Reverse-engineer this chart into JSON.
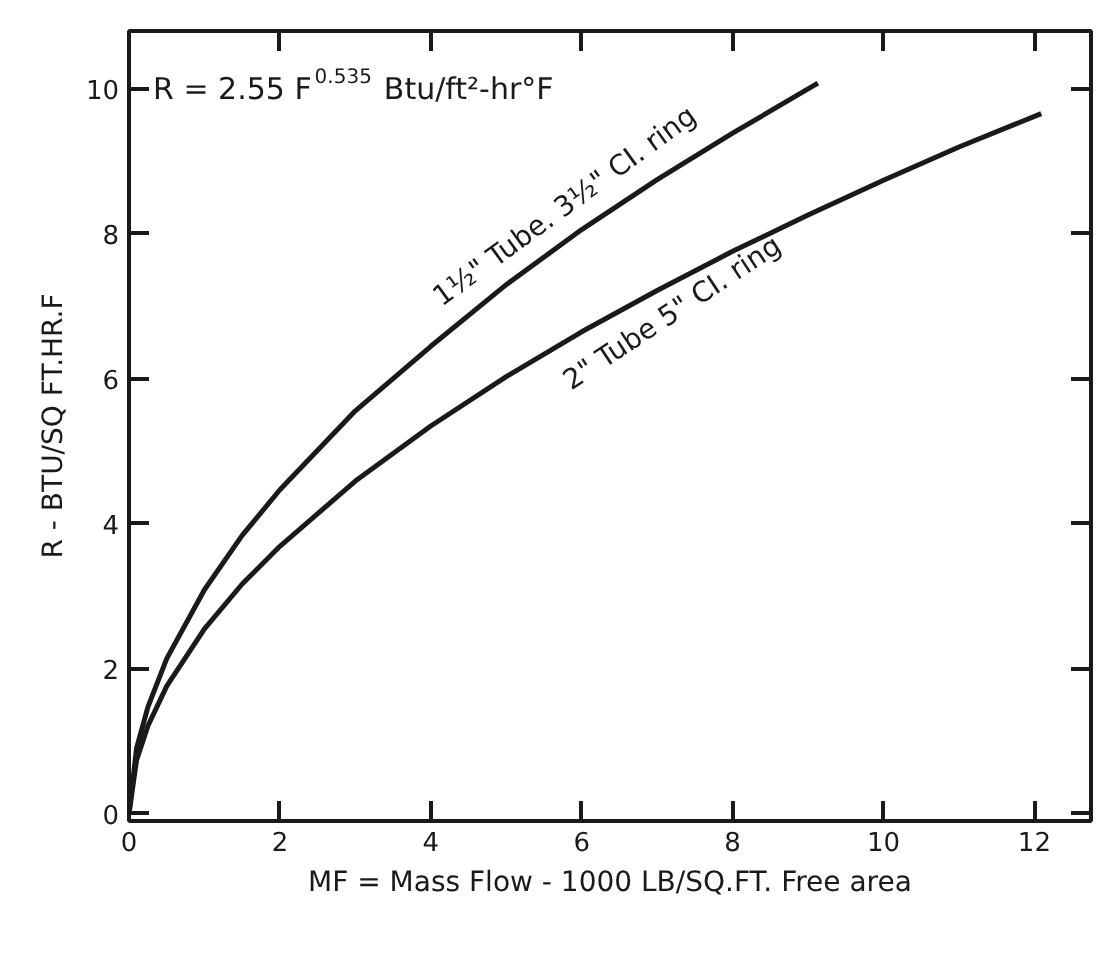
{
  "chart_data": {
    "type": "line",
    "xlabel": "MF = Mass Flow - 1000 LB/SQ.FT. Free area",
    "ylabel": "R - BTU/SQ FT.HR.F",
    "xlim": [
      0,
      12.75
    ],
    "ylim": [
      -0.1,
      10.8
    ],
    "xticks": [
      0,
      2,
      4,
      6,
      8,
      10,
      12
    ],
    "yticks": [
      0,
      2,
      4,
      6,
      8,
      10
    ],
    "grid": false,
    "marker": "none",
    "line_style": "solid",
    "series": [
      {
        "color": "#1a1a1a",
        "x": [
          0,
          0.1,
          0.25,
          0.5,
          1,
          1.5,
          2,
          3,
          4,
          5,
          6,
          7,
          8,
          9.13
        ],
        "values": [
          0,
          0.9,
          1.47,
          2.14,
          3.09,
          3.84,
          4.47,
          5.56,
          6.45,
          7.3,
          8.06,
          8.75,
          9.39,
          10.08
        ]
      },
      {
        "color": "#1a1a1a",
        "x": [
          0,
          0.1,
          0.25,
          0.5,
          1,
          1.5,
          2,
          3,
          4,
          5,
          6,
          7,
          8,
          9,
          10,
          11,
          12.09
        ],
        "values": [
          0,
          0.74,
          1.21,
          1.76,
          2.55,
          3.17,
          3.69,
          4.59,
          5.35,
          6.03,
          6.65,
          7.22,
          7.76,
          8.26,
          8.74,
          9.2,
          9.66
        ]
      }
    ],
    "annotations": [
      {
        "text": "R = 2.55 F$^{0.535}$ Btu/ft²-hr°F"
      },
      {
        "text": "1½\" Tube. 3½\" CI. ring",
        "x": 6,
        "y": 8.06
      },
      {
        "text": "2\" Tube 5\" CI. ring",
        "x": 7,
        "y": 7.22
      }
    ]
  }
}
